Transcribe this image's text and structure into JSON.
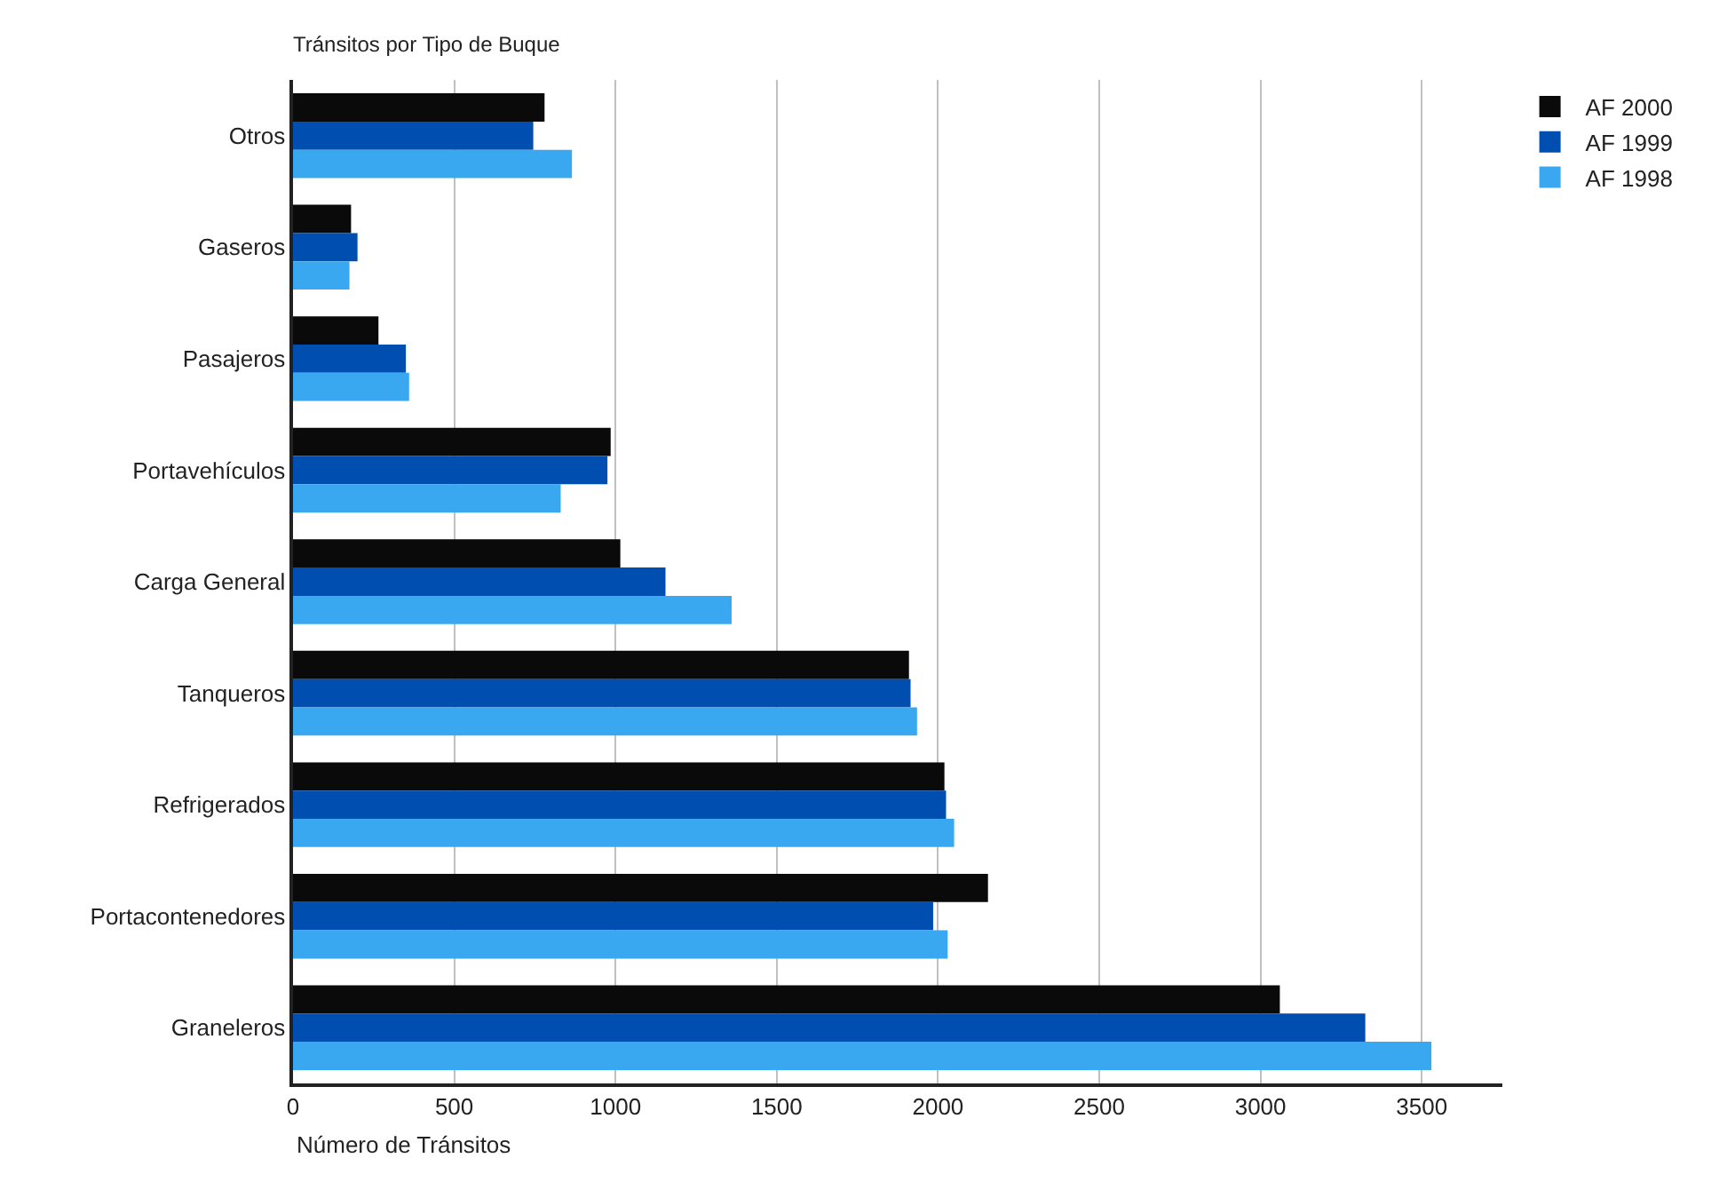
{
  "chart_data": {
    "type": "bar",
    "orientation": "horizontal",
    "title": "Tránsitos por Tipo de Buque",
    "xlabel": "Número de Tránsitos",
    "categories": [
      "Otros",
      "Gaseros",
      "Pasajeros",
      "Portavehículos",
      "Carga General",
      "Tanqueros",
      "Refrigerados",
      "Portacontenedores",
      "Graneleros"
    ],
    "series": [
      {
        "name": "AF 2000",
        "color": "#0a0a0a",
        "values": [
          780,
          180,
          265,
          985,
          1015,
          1910,
          2020,
          2155,
          3060
        ]
      },
      {
        "name": "AF 1999",
        "color": "#004fb0",
        "values": [
          745,
          200,
          350,
          975,
          1155,
          1915,
          2025,
          1985,
          3325
        ]
      },
      {
        "name": "AF 1998",
        "color": "#3aa8f0",
        "values": [
          865,
          175,
          360,
          830,
          1360,
          1935,
          2050,
          2030,
          3530
        ]
      }
    ],
    "xlim": [
      0,
      3750
    ],
    "xticks": [
      0,
      500,
      1000,
      1500,
      2000,
      2500,
      3000,
      3500
    ],
    "grid": "x",
    "legend": "top right"
  }
}
